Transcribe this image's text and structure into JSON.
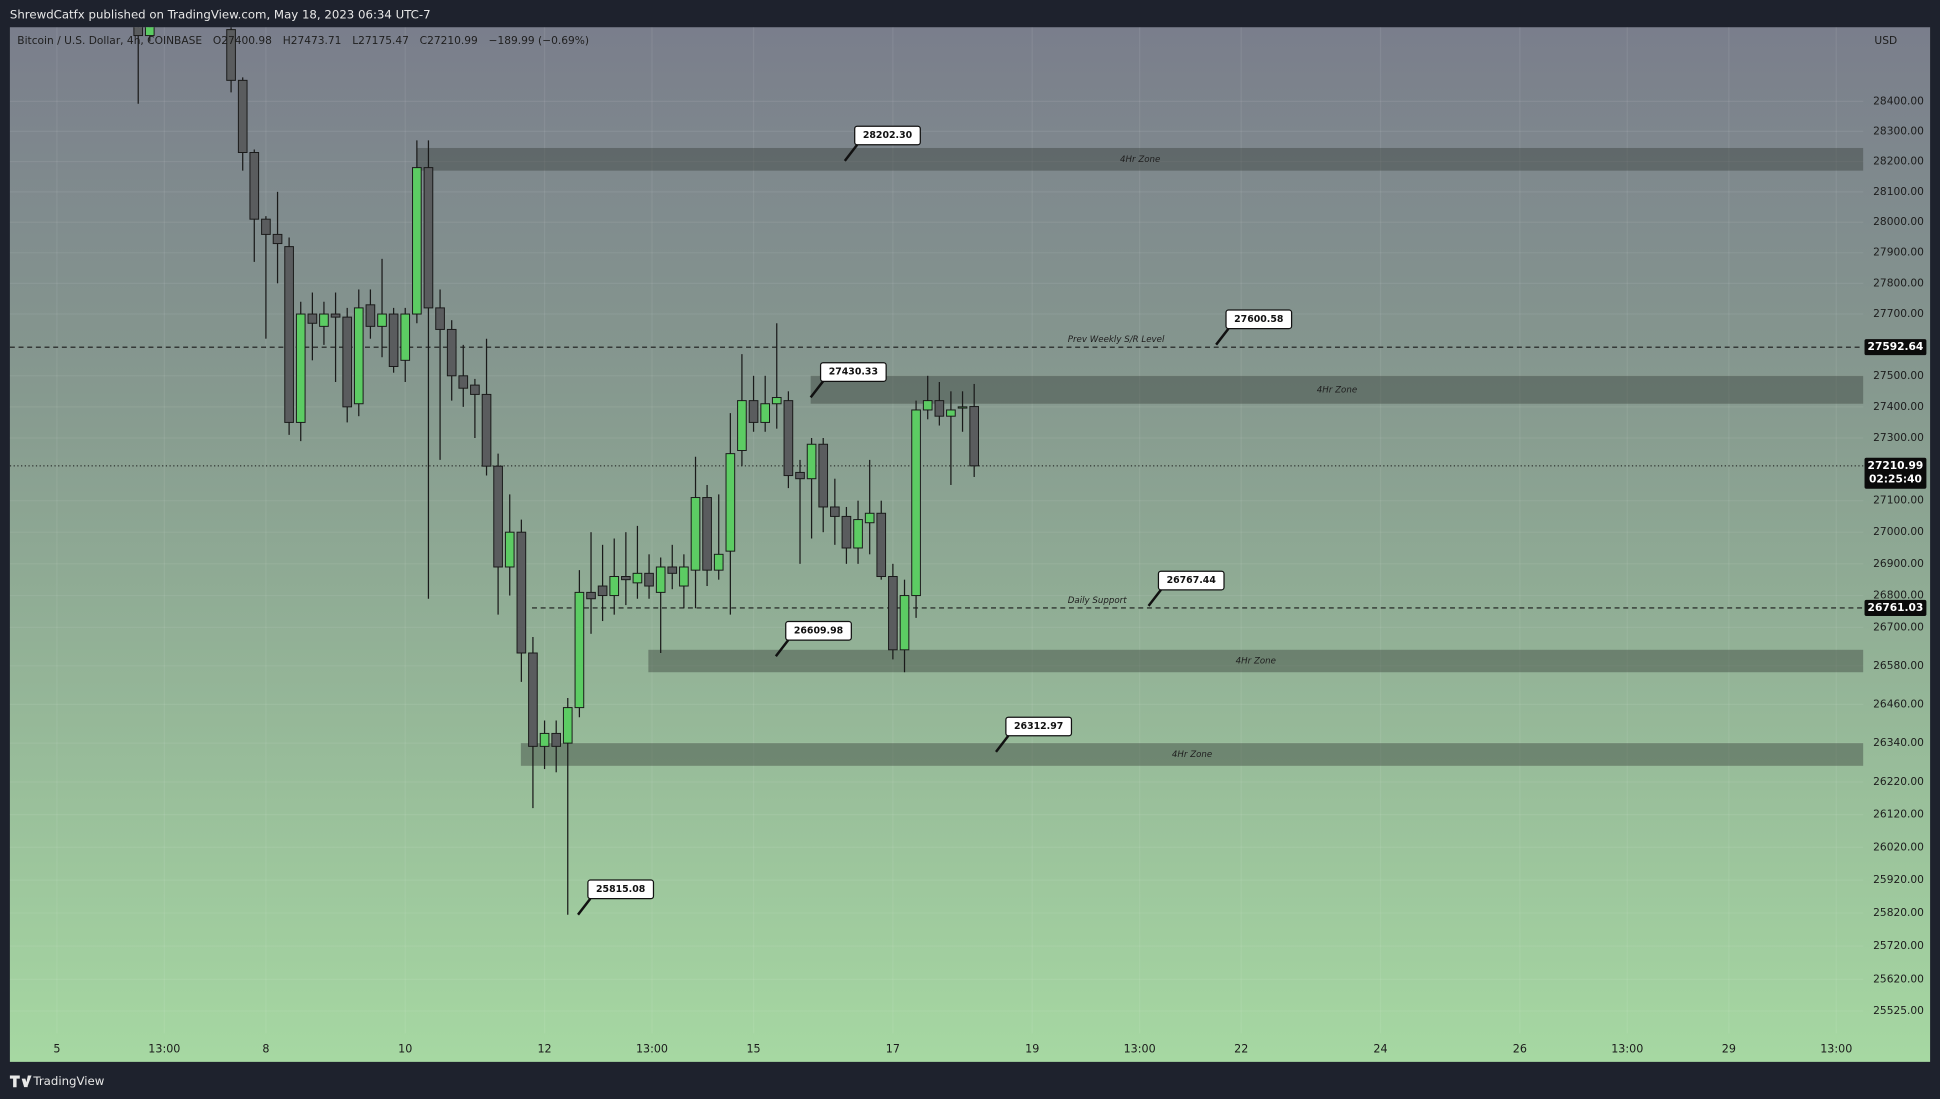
{
  "header": {
    "publisher": "ShrewdCatfx published on TradingView.com, May 18, 2023 06:34 UTC-7"
  },
  "footer": {
    "brand": "TradingView"
  },
  "chart_data": {
    "type": "candlestick",
    "title": "Bitcoin / U.S. Dollar, 4h, COINBASE",
    "legend": [
      "O27400.98",
      "H27473.71",
      "L27175.47",
      "C27210.99",
      "−189.99 (−0.69%)"
    ],
    "currency": "USD",
    "up_color": "#5ccc63",
    "down_color": "#5a5c5e",
    "log_scale": true,
    "grid": true,
    "x": [
      6.167,
      6.333,
      7.5,
      7.667,
      7.833,
      8,
      8.167,
      8.333,
      8.5,
      8.667,
      8.833,
      9,
      9.167,
      9.333,
      9.5,
      9.667,
      9.833,
      10,
      10.167,
      10.333,
      10.5,
      10.667,
      10.833,
      11,
      11.167,
      11.333,
      11.5,
      11.667,
      11.833,
      12,
      12.167,
      12.333,
      12.5,
      12.667,
      12.833,
      13,
      13.167,
      13.333,
      13.5,
      13.667,
      13.833,
      14,
      14.167,
      14.333,
      14.5,
      14.667,
      14.833,
      15,
      15.167,
      15.333,
      15.5,
      15.667,
      15.833,
      16,
      16.167,
      16.333,
      16.5,
      16.667,
      16.833,
      17,
      17.167,
      17.333,
      17.5,
      17.667,
      17.833,
      18,
      18.167
    ],
    "open": [
      28670,
      28620,
      28640,
      28470,
      28230,
      28010,
      27960,
      27920,
      27350,
      27700,
      27660,
      27700,
      27690,
      27410,
      27730,
      27660,
      27700,
      27550,
      27700,
      28180,
      27720,
      27650,
      27500,
      27470,
      27440,
      27210,
      26890,
      27000,
      26620,
      26330,
      26370,
      26340,
      26450,
      26810,
      26830,
      26800,
      26860,
      26840,
      26870,
      26810,
      26890,
      26830,
      26880,
      27110,
      26880,
      26940,
      27260,
      27420,
      27350,
      27410,
      27420,
      27190,
      27170,
      27280,
      27080,
      27050,
      26950,
      27030,
      27060,
      26860,
      26630,
      26800,
      27390,
      27420,
      27370,
      27400,
      27400.98
    ],
    "high": [
      28700,
      28700,
      28670,
      28480,
      28240,
      28020,
      28100,
      27950,
      27740,
      27770,
      27740,
      27770,
      27720,
      27780,
      27780,
      27880,
      27720,
      27720,
      28270,
      28270,
      27780,
      27680,
      27600,
      27490,
      27620,
      27250,
      27120,
      27040,
      26670,
      26410,
      26410,
      26480,
      26880,
      27000,
      26960,
      26980,
      27000,
      27020,
      26930,
      26920,
      26960,
      26930,
      27240,
      27150,
      27120,
      27380,
      27570,
      27500,
      27500,
      27670,
      27450,
      27230,
      27300,
      27300,
      27170,
      27080,
      27100,
      27230,
      27100,
      26900,
      26850,
      27420,
      27500,
      27480,
      27450,
      27450,
      27473.71
    ],
    "low": [
      28392,
      28600,
      28430,
      28170,
      27870,
      27620,
      27800,
      27310,
      27290,
      27550,
      27600,
      27480,
      27350,
      27370,
      27620,
      27560,
      27510,
      27480,
      27670,
      26790,
      27230,
      27420,
      27400,
      27300,
      27180,
      26740,
      26800,
      26530,
      26140,
      26260,
      26250,
      25815.08,
      26420,
      26680,
      26720,
      26740,
      26770,
      26790,
      26790,
      26620,
      26820,
      26760,
      26760,
      26830,
      26850,
      26740,
      27210,
      27320,
      27320,
      27330,
      27140,
      26900,
      26980,
      27000,
      26960,
      26900,
      26900,
      26930,
      26850,
      26600,
      26560,
      26730,
      27360,
      27340,
      27150,
      27320,
      27175.47
    ],
    "close": [
      28620,
      28660,
      28470,
      28230,
      28010,
      27960,
      27930,
      27350,
      27700,
      27670,
      27700,
      27690,
      27400,
      27720,
      27660,
      27700,
      27530,
      27700,
      28180,
      27720,
      27650,
      27500,
      27460,
      27440,
      27210,
      26890,
      27000,
      26620,
      26330,
      26370,
      26330,
      26450,
      26810,
      26790,
      26800,
      26860,
      26850,
      26870,
      26830,
      26890,
      26870,
      26890,
      27110,
      26880,
      26930,
      27250,
      27420,
      27350,
      27410,
      27430,
      27180,
      27170,
      27280,
      27080,
      27050,
      26950,
      27040,
      27060,
      26860,
      26630,
      26800,
      27390,
      27420,
      27370,
      27390,
      27400,
      27210.99
    ],
    "xlim": [
      4.325,
      30.93
    ],
    "xticks": [
      5,
      {
        "value": 6.542,
        "label": "13:00"
      },
      8,
      10,
      12,
      {
        "value": 13.542,
        "label": "13:00"
      },
      15,
      17,
      19,
      {
        "value": 20.542,
        "label": "13:00"
      },
      22,
      24,
      26,
      {
        "value": 27.542,
        "label": "13:00"
      },
      29,
      {
        "value": 30.542,
        "label": "13:00"
      }
    ],
    "ylim": [
      25458,
      28648
    ],
    "yticks": [
      {
        "value": 28400,
        "label": "28400.00"
      },
      {
        "value": 28300,
        "label": "28300.00"
      },
      {
        "value": 28200,
        "label": "28200.00"
      },
      {
        "value": 28100,
        "label": "28100.00"
      },
      {
        "value": 28000,
        "label": "28000.00"
      },
      {
        "value": 27900,
        "label": "27900.00"
      },
      {
        "value": 27800,
        "label": "27800.00"
      },
      {
        "value": 27700,
        "label": "27700.00"
      },
      {
        "value": 27500,
        "label": "27500.00"
      },
      {
        "value": 27400,
        "label": "27400.00"
      },
      {
        "value": 27300,
        "label": "27300.00"
      },
      {
        "value": 27100,
        "label": "27100.00"
      },
      {
        "value": 27000,
        "label": "27000.00"
      },
      {
        "value": 26900,
        "label": "26900.00"
      },
      {
        "value": 26800,
        "label": "26800.00"
      },
      {
        "value": 26700,
        "label": "26700.00"
      },
      {
        "value": 26580,
        "label": "26580.00"
      },
      {
        "value": 26460,
        "label": "26460.00"
      },
      {
        "value": 26340,
        "label": "26340.00"
      },
      {
        "value": 26220,
        "label": "26220.00"
      },
      {
        "value": 26120,
        "label": "26120.00"
      },
      {
        "value": 26020,
        "label": "26020.00"
      },
      {
        "value": 25920,
        "label": "25920.00"
      },
      {
        "value": 25820,
        "label": "25820.00"
      },
      {
        "value": 25720,
        "label": "25720.00"
      },
      {
        "value": 25620,
        "label": "25620.00"
      },
      {
        "value": 25525,
        "label": "25525.00"
      }
    ],
    "levels": [
      {
        "name": "Prev Weekly S/R Level",
        "value": 27592.64,
        "label": "27592.64"
      },
      {
        "name": "Daily Support",
        "value": 26761.03,
        "label": "26761.03",
        "from": 11.82
      }
    ],
    "last_price": {
      "value": 27210.99,
      "label": "27210.99",
      "countdown": "02:25:40"
    },
    "zones": [
      {
        "name": "4Hr Zone",
        "top": 28245,
        "bottom": 28170,
        "from": 10.17
      },
      {
        "name": "4Hr Zone",
        "top": 27500,
        "bottom": 27410,
        "from": 15.82
      },
      {
        "name": "4Hr Zone",
        "top": 26630,
        "bottom": 26560,
        "from": 13.49
      },
      {
        "name": "4Hr Zone",
        "top": 26340,
        "bottom": 26270,
        "from": 11.66
      }
    ],
    "callouts": [
      {
        "value": 28202.3,
        "label": "28202.30",
        "x": 16.31
      },
      {
        "value": 27600.58,
        "label": "27600.58",
        "x": 21.64
      },
      {
        "value": 27430.33,
        "label": "27430.33",
        "x": 15.82
      },
      {
        "value": 26767.44,
        "label": "26767.44",
        "x": 20.67
      },
      {
        "value": 26609.98,
        "label": "26609.98",
        "x": 15.32
      },
      {
        "value": 26312.97,
        "label": "26312.97",
        "x": 18.48
      },
      {
        "value": 25815.08,
        "label": "25815.08",
        "x": 12.48
      }
    ]
  }
}
